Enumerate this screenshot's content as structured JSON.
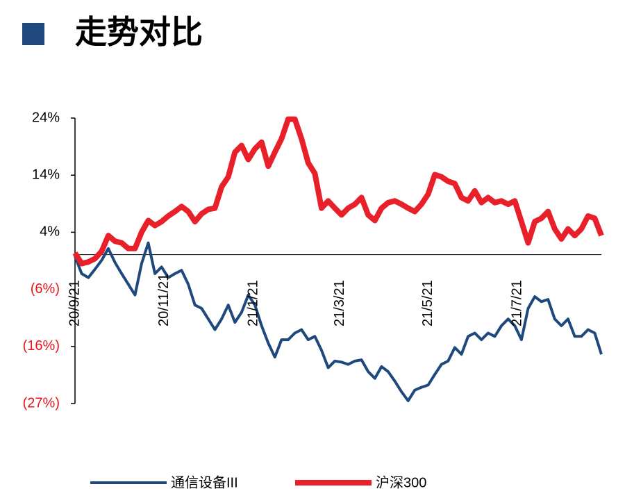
{
  "chart_data": {
    "type": "line",
    "title": "走势对比",
    "xlim": [
      0,
      79
    ],
    "xticks": [
      {
        "value": 0,
        "label": "20/9/21"
      },
      {
        "value": 13.4,
        "label": "20/11/21"
      },
      {
        "value": 26.8,
        "label": "21/1/21"
      },
      {
        "value": 39.8,
        "label": "21/3/21"
      },
      {
        "value": 53,
        "label": "21/5/21"
      },
      {
        "value": 66.4,
        "label": "21/7/21"
      }
    ],
    "ylim": [
      -26.6,
      24.4
    ],
    "yticks": [
      {
        "value": 24.4,
        "label": "24%"
      },
      {
        "value": 14.2,
        "label": "14%"
      },
      {
        "value": 4.0,
        "label": "4%"
      },
      {
        "value": -6.2,
        "label": "(6%)"
      },
      {
        "value": -16.4,
        "label": "(16%)"
      },
      {
        "value": -26.6,
        "label": "(27%)"
      }
    ],
    "series": [
      {
        "name": "通信设备III",
        "color": "#1f497d",
        "width": 4,
        "values": [
          -0.3,
          -3.4,
          -4.1,
          -2.6,
          -1,
          1.1,
          -1.4,
          -3.4,
          -5.3,
          -7.2,
          -1.6,
          2.1,
          -3.4,
          -2.2,
          -4.1,
          -3.4,
          -2.8,
          -5.3,
          -9,
          -9.6,
          -11.5,
          -13.4,
          -11.5,
          -9,
          -12.1,
          -10.3,
          -7.2,
          -9,
          -12.7,
          -15.8,
          -18.3,
          -15.2,
          -15.2,
          -14,
          -13.4,
          -15.2,
          -14.6,
          -17.1,
          -20.2,
          -19,
          -19.2,
          -19.6,
          -19,
          -18.8,
          -20.9,
          -22.1,
          -20,
          -20.9,
          -22.6,
          -24.5,
          -26.1,
          -24.2,
          -23.7,
          -23.3,
          -21.4,
          -19.6,
          -19,
          -16.6,
          -17.8,
          -14.6,
          -14,
          -15.2,
          -14,
          -14.6,
          -12.7,
          -11.5,
          -12.7,
          -15.2,
          -9.6,
          -7.5,
          -8.4,
          -8,
          -11.5,
          -12.7,
          -11.5,
          -14.6,
          -14.6,
          -13.4,
          -14,
          -17.8
        ]
      },
      {
        "name": "沪深300",
        "color": "#e8202a",
        "width": 8,
        "values": [
          0.3,
          -1.6,
          -1.3,
          -0.7,
          0.6,
          3.4,
          2.4,
          2.1,
          1.1,
          1.1,
          4,
          6.1,
          5.2,
          5.9,
          6.9,
          7.7,
          8.6,
          7.7,
          5.9,
          7.3,
          8.1,
          8.3,
          12.1,
          13.9,
          18.3,
          19.5,
          17,
          18.9,
          20.1,
          15.8,
          18.3,
          20.7,
          24.2,
          24.2,
          20.7,
          16.4,
          14.5,
          8.3,
          9.6,
          8.3,
          7.1,
          8.3,
          9,
          10.2,
          7.1,
          6.1,
          8.3,
          9.3,
          9.6,
          9,
          8.3,
          7.7,
          9,
          10.8,
          14.3,
          13.9,
          13.1,
          12.7,
          10.2,
          9.6,
          11.4,
          9.3,
          10.2,
          9.3,
          9.6,
          9,
          9.6,
          5.9,
          2.1,
          5.9,
          6.5,
          7.7,
          4.6,
          2.8,
          4.6,
          3.4,
          4.6,
          6.9,
          6.5,
          3.4
        ]
      }
    ]
  }
}
